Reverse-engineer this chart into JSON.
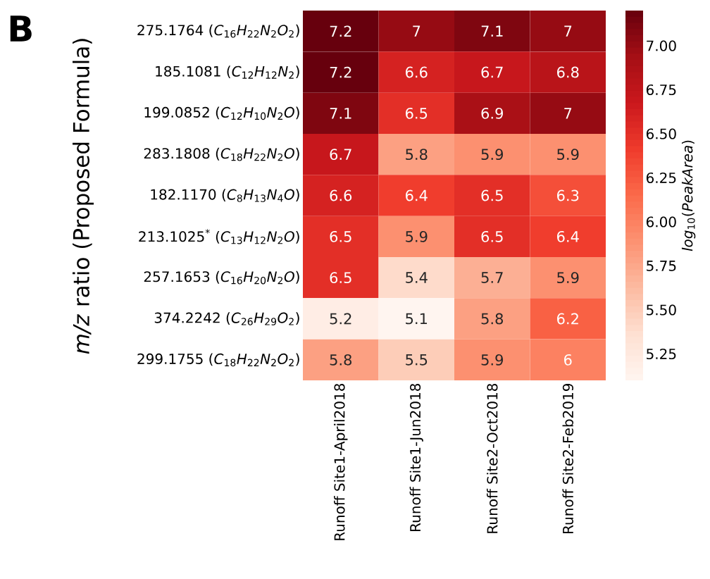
{
  "chart_data": {
    "type": "heatmap",
    "title": "B",
    "ylabel": "*m/z* ratio (Proposed Formula)",
    "clabel": "*log*$_{10}$(*PeakArea*)",
    "categories": [
      "Runoff Site1-April2018",
      "Runoff Site1-Jun2018",
      "Runoff Site2-Oct2018",
      "Runoff Site2-Feb2019"
    ],
    "y_categories": [
      "275.1764 (*C*$_{16}$*H*$_{22}$*N*$_{2}$*O*$_{2}$)",
      "185.1081 (*C*$_{12}$*H*$_{12}$*N*$_{2}$)",
      "199.0852 (*C*$_{12}$*H*$_{10}$*N*$_{2}$*O*)",
      "283.1808 (*C*$_{18}$*H*$_{22}$*N*$_{2}$*O*)",
      "182.1170 (*C*$_{8}$*H*$_{13}$*N*$_{4}$*O*)",
      "213.1025$^{*}$ (*C*$_{13}$*H*$_{12}$*N*$_{2}$*O*)",
      "257.1653 (*C*$_{16}$*H*$_{20}$*N*$_{2}$*O*)",
      "374.2242 (*C*$_{26}$*H*$_{29}$*O*$_{2}$)",
      "299.1755 (*C*$_{18}$*H*$_{22}$*N*$_{2}$*O*$_{2}$)"
    ],
    "cells": [
      [
        7.2,
        7,
        7.1,
        7
      ],
      [
        7.2,
        6.6,
        6.7,
        6.8
      ],
      [
        7.1,
        6.5,
        6.9,
        7
      ],
      [
        6.7,
        5.8,
        5.9,
        5.9
      ],
      [
        6.6,
        6.4,
        6.5,
        6.3
      ],
      [
        6.5,
        5.9,
        6.5,
        6.4
      ],
      [
        6.5,
        5.4,
        5.7,
        5.9
      ],
      [
        5.2,
        5.1,
        5.8,
        6.2
      ],
      [
        5.8,
        5.5,
        5.9,
        6
      ]
    ],
    "data_labels": true,
    "clim": [
      5.1,
      7.2
    ],
    "cticks": [
      {
        "value": 5.25,
        "label": "5.25"
      },
      {
        "value": 5.5,
        "label": "5.50"
      },
      {
        "value": 5.75,
        "label": "5.75"
      },
      {
        "value": 6.0,
        "label": "6.00"
      },
      {
        "value": 6.25,
        "label": "6.25"
      },
      {
        "value": 6.5,
        "label": "6.50"
      },
      {
        "value": 6.75,
        "label": "6.75"
      },
      {
        "value": 7.0,
        "label": "7.00"
      }
    ]
  }
}
